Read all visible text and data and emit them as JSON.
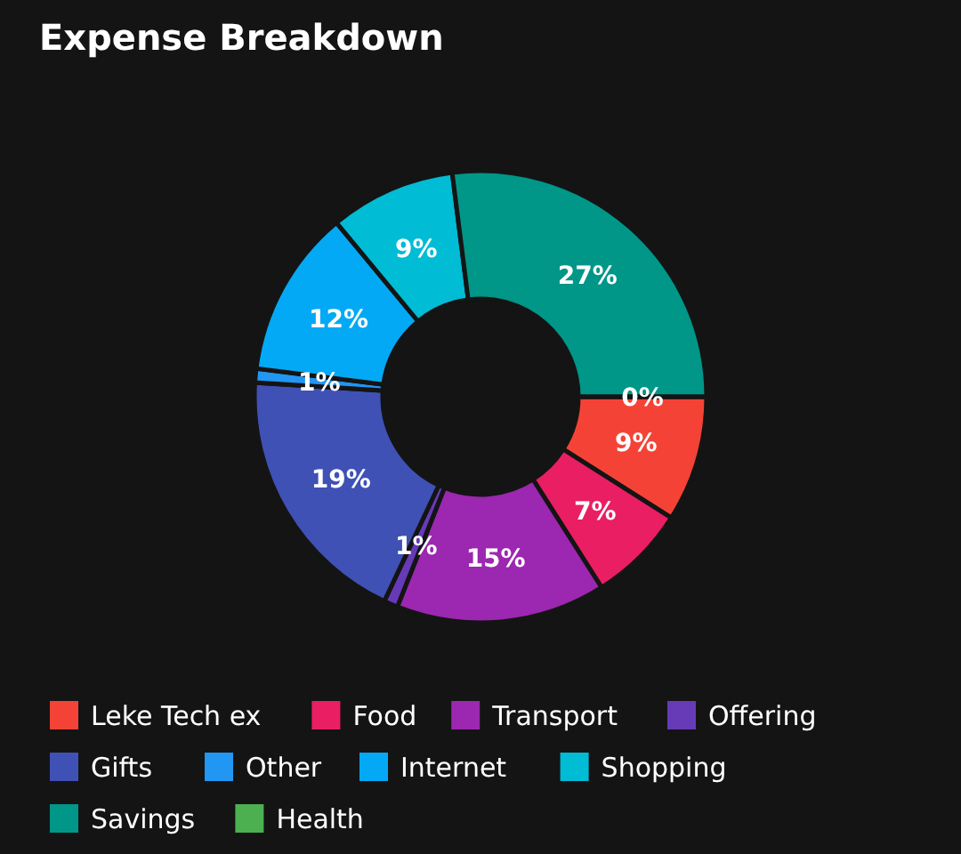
{
  "chart_data": {
    "type": "donut",
    "title": "Expense Breakdown",
    "categories": [
      "Leke Tech ex",
      "Food",
      "Transport",
      "Offering",
      "Gifts",
      "Other",
      "Internet",
      "Shopping",
      "Savings",
      "Health"
    ],
    "values": [
      9,
      7,
      15,
      1,
      19,
      1,
      12,
      9,
      27,
      0
    ],
    "value_labels": [
      "9%",
      "7%",
      "15%",
      "1%",
      "19%",
      "1%",
      "12%",
      "9%",
      "27%",
      "0%"
    ],
    "colors": [
      "#f44336",
      "#e91e63",
      "#9c27b0",
      "#673ab7",
      "#3f51b5",
      "#2196f3",
      "#03a9f4",
      "#00bcd4",
      "#009688",
      "#4caf50"
    ],
    "legend": "bottom"
  }
}
